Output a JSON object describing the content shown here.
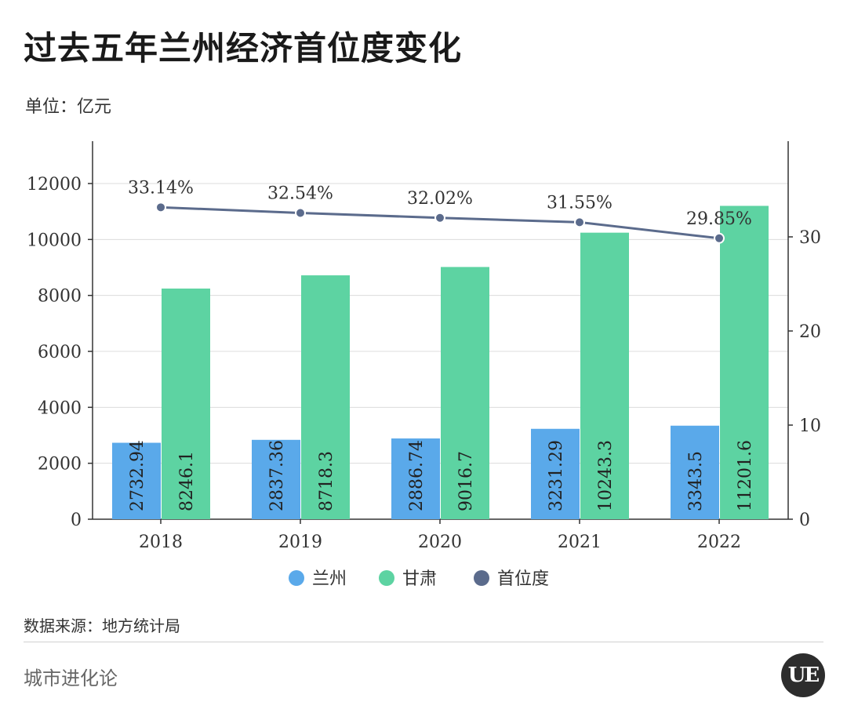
{
  "page": {
    "title": "过去五年兰州经济首位度变化",
    "unit": "单位：亿元",
    "source": "数据来源：地方统计局",
    "brand": "城市进化论",
    "logo": "UE"
  },
  "chart_data": {
    "type": "bar",
    "categories": [
      "2018",
      "2019",
      "2020",
      "2021",
      "2022"
    ],
    "series": [
      {
        "name": "兰州",
        "type": "bar",
        "axis": "left",
        "color": "#5aa9ea",
        "values": [
          2732.94,
          2837.36,
          2886.74,
          3231.29,
          3343.5
        ],
        "labels": [
          "2732.94",
          "2837.36",
          "2886.74",
          "3231.29",
          "3343.5"
        ]
      },
      {
        "name": "甘肃",
        "type": "bar",
        "axis": "left",
        "color": "#5dd3a2",
        "values": [
          8246.1,
          8718.3,
          9016.7,
          10243.3,
          11201.6
        ],
        "labels": [
          "8246.1",
          "8718.3",
          "9016.7",
          "10243.3",
          "11201.6"
        ]
      },
      {
        "name": "首位度",
        "type": "line",
        "axis": "right",
        "color": "#5b6b8c",
        "values": [
          33.14,
          32.54,
          32.02,
          31.55,
          29.85
        ],
        "labels": [
          "33.14%",
          "32.54%",
          "32.02%",
          "31.55%",
          "29.85%"
        ]
      }
    ],
    "left_axis": {
      "ticks": [
        0,
        2000,
        4000,
        6000,
        8000,
        10000,
        12000
      ],
      "range": [
        0,
        13000
      ]
    },
    "right_axis": {
      "ticks": [
        0,
        10,
        20,
        30
      ],
      "range": [
        0,
        39.6
      ]
    },
    "grid": true,
    "legend": "bottom-center"
  }
}
